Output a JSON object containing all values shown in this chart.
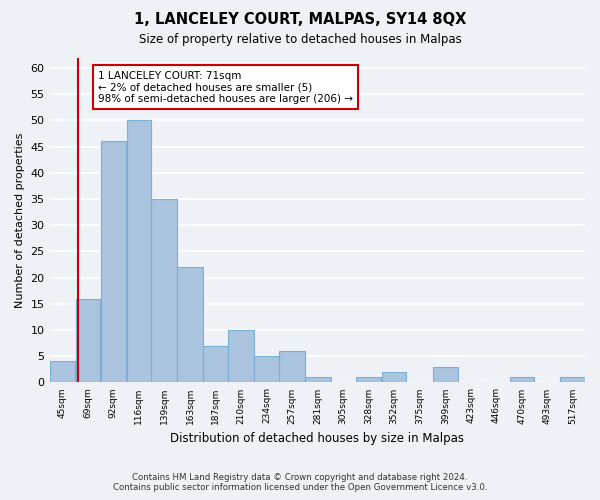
{
  "title": "1, LANCELEY COURT, MALPAS, SY14 8QX",
  "subtitle": "Size of property relative to detached houses in Malpas",
  "xlabel": "Distribution of detached houses by size in Malpas",
  "ylabel": "Number of detached properties",
  "bar_edges": [
    45,
    69,
    92,
    116,
    139,
    163,
    187,
    210,
    234,
    257,
    281,
    305,
    328,
    352,
    375,
    399,
    423,
    446,
    470,
    493,
    517,
    540
  ],
  "bar_heights": [
    4,
    16,
    46,
    50,
    35,
    22,
    7,
    10,
    5,
    6,
    1,
    0,
    1,
    2,
    0,
    3,
    0,
    0,
    1,
    0,
    1
  ],
  "tick_labels": [
    "45sqm",
    "69sqm",
    "92sqm",
    "116sqm",
    "139sqm",
    "163sqm",
    "187sqm",
    "210sqm",
    "234sqm",
    "257sqm",
    "281sqm",
    "305sqm",
    "328sqm",
    "352sqm",
    "375sqm",
    "399sqm",
    "423sqm",
    "446sqm",
    "470sqm",
    "493sqm",
    "517sqm"
  ],
  "bar_color": "#aac4df",
  "bar_edge_color": "#7aafd4",
  "vline_x": 71,
  "vline_color": "#cc0000",
  "ylim": [
    0,
    62
  ],
  "yticks": [
    0,
    5,
    10,
    15,
    20,
    25,
    30,
    35,
    40,
    45,
    50,
    55,
    60
  ],
  "annotation_text": "1 LANCELEY COURT: 71sqm\n← 2% of detached houses are smaller (5)\n98% of semi-detached houses are larger (206) →",
  "annotation_box_color": "#ffffff",
  "annotation_box_edge": "#cc0000",
  "footer_line1": "Contains HM Land Registry data © Crown copyright and database right 2024.",
  "footer_line2": "Contains public sector information licensed under the Open Government Licence v3.0.",
  "background_color": "#eef2f7",
  "grid_color": "#ffffff"
}
